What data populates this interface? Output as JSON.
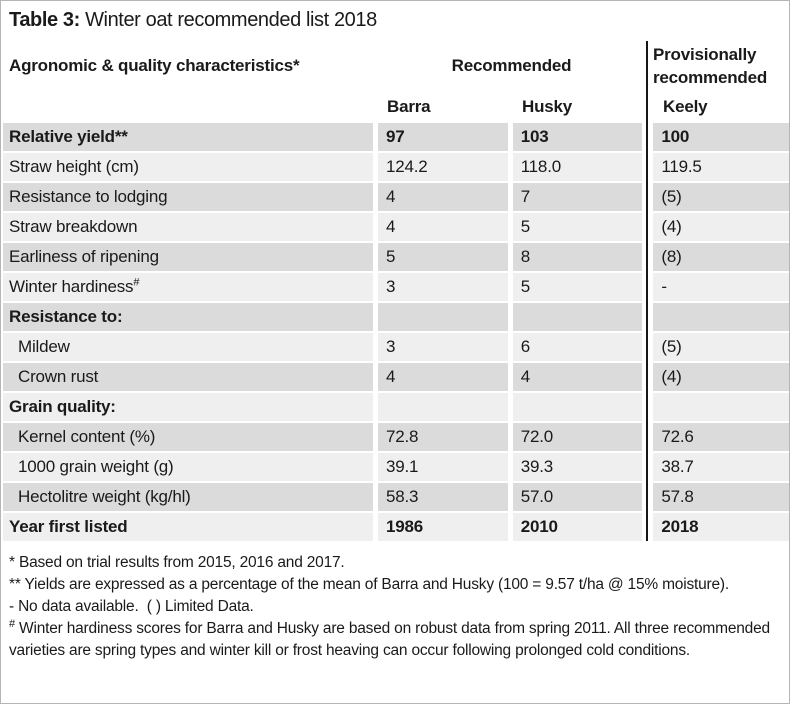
{
  "title": {
    "bold": "Table 3:",
    "rest": " Winter oat recommended list 2018"
  },
  "table": {
    "header": {
      "left": "Agronomic & quality characteristics*",
      "recommended": "Recommended",
      "provisional": "Provisionally recommended"
    },
    "columns": [
      "Barra",
      "Husky",
      "Keely"
    ],
    "rows": [
      {
        "label": "Relative yield**",
        "values": [
          "97",
          "103",
          "100"
        ]
      },
      {
        "label": "Straw height (cm)",
        "values": [
          "124.2",
          "118.0",
          "119.5"
        ]
      },
      {
        "label": "Resistance to lodging",
        "values": [
          "4",
          "7",
          "(5)"
        ]
      },
      {
        "label": "Straw breakdown",
        "values": [
          "4",
          "5",
          "(4)"
        ]
      },
      {
        "label": "Earliness of ripening",
        "values": [
          "5",
          "8",
          "(8)"
        ]
      },
      {
        "label": "Winter hardiness",
        "sup": "#",
        "values": [
          "3",
          "5",
          "-"
        ]
      },
      {
        "label": "Resistance to:",
        "values": [
          "",
          "",
          ""
        ]
      },
      {
        "label": "Mildew",
        "values": [
          "3",
          "6",
          "(5)"
        ]
      },
      {
        "label": "Crown rust",
        "values": [
          "4",
          "4",
          "(4)"
        ]
      },
      {
        "label": "Grain quality:",
        "values": [
          "",
          "",
          ""
        ]
      },
      {
        "label": "Kernel content (%)",
        "values": [
          "72.8",
          "72.0",
          "72.6"
        ]
      },
      {
        "label": "1000 grain weight (g)",
        "values": [
          "39.1",
          "39.3",
          "38.7"
        ]
      },
      {
        "label": "Hectolitre weight (kg/hl)",
        "values": [
          "58.3",
          "57.0",
          "57.8"
        ]
      },
      {
        "label": "Year first listed",
        "values": [
          "1986",
          "2010",
          "2018"
        ]
      }
    ]
  },
  "footnotes": {
    "f1": "* Based on trial results from 2015, 2016 and 2017.",
    "f2": "** Yields are expressed as a percentage of the mean of Barra and Husky (100 = 9.57 t/ha @ 15% moisture).",
    "f3": "- No data available.  ( ) Limited Data.",
    "f4_sup": "#",
    "f4_text": " Winter hardiness scores for Barra and Husky are based on robust data from spring 2011. All three recommended varieties are spring types and winter kill or frost heaving can occur following prolonged cold conditions."
  },
  "colors": {
    "stripe_dark": "#dbdbdb",
    "stripe_light": "#efefef",
    "divider": "#161616",
    "text": "#1a1a1a"
  }
}
